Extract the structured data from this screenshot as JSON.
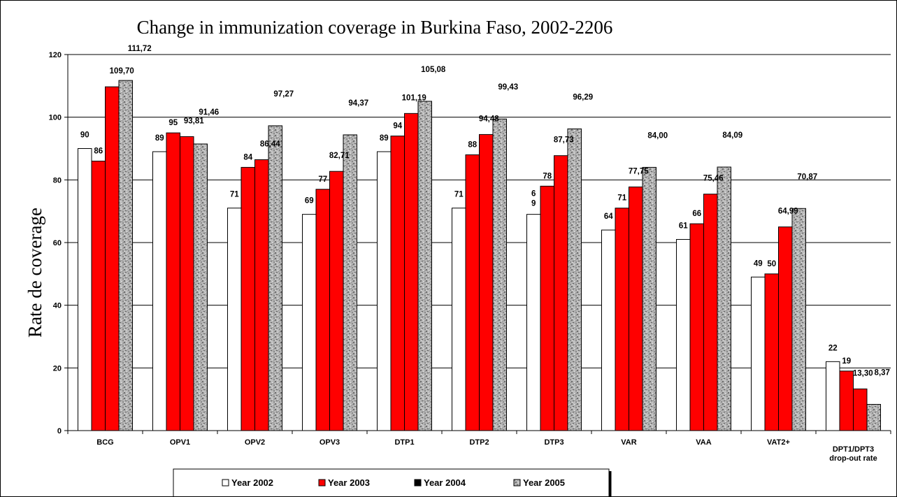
{
  "chart_data": {
    "type": "bar",
    "title": "Change in immunization coverage in Burkina Faso, 2002-2206",
    "ylabel": "Rate de coverage",
    "xlabel": "",
    "ylim": [
      0,
      120
    ],
    "yticks": [
      0,
      20,
      40,
      60,
      80,
      100,
      120
    ],
    "grid": true,
    "legend_position": "bottom",
    "categories": [
      "BCG",
      "OPV1",
      "OPV2",
      "OPV3",
      "DTP1",
      "DTP2",
      "DTP3",
      "VAR",
      "VAA",
      "VAT2+",
      "DPT1/DPT3 drop-out rate"
    ],
    "category_labels": [
      [
        "BCG"
      ],
      [
        "OPV1"
      ],
      [
        "OPV2"
      ],
      [
        "OPV3"
      ],
      [
        "DTP1"
      ],
      [
        "DTP2"
      ],
      [
        "DTP3"
      ],
      [
        "VAR"
      ],
      [
        "VAA"
      ],
      [
        "VAT2+"
      ],
      [
        "DPT1/DPT3",
        "drop-out rate"
      ]
    ],
    "series": [
      {
        "name": "Year 2002",
        "color": "#ffffff",
        "pattern": "none",
        "values": [
          90,
          89,
          71,
          69,
          89,
          71,
          69,
          64,
          61,
          49,
          22
        ],
        "labels": [
          "90",
          "89",
          "71",
          "69",
          "89",
          "71",
          "6\n9",
          "64",
          "61",
          "49",
          "22"
        ]
      },
      {
        "name": "Year 2003",
        "color": "#ff0000",
        "pattern": "none",
        "values": [
          86,
          95,
          84,
          77,
          94,
          88,
          78,
          71,
          66,
          50,
          19
        ],
        "labels": [
          "86",
          "95",
          "84",
          "77",
          "94",
          "88",
          "78",
          "71",
          "66",
          "50",
          "19"
        ]
      },
      {
        "name": "Year 2004",
        "color": "#ff0000",
        "legend_color": "#000000",
        "pattern": "none",
        "values": [
          109.7,
          93.81,
          86.44,
          82.71,
          101.19,
          94.48,
          87.73,
          77.75,
          75.46,
          64.99,
          13.3
        ],
        "labels": [
          "109,70",
          "93,81",
          "86,44",
          "82,71",
          "101,19",
          "94,48",
          "87,73",
          "77,75",
          "75,46",
          "64,99",
          "13,30"
        ]
      },
      {
        "name": "Year 2005",
        "color": "#a9a9a9",
        "pattern": "granite",
        "values": [
          111.72,
          91.46,
          97.27,
          94.37,
          105.08,
          99.43,
          96.29,
          84.0,
          84.09,
          70.87,
          8.37
        ],
        "labels": [
          "111,72",
          "91,46",
          "97,27",
          "94,37",
          "105,08",
          "99,43",
          "96,29",
          "84,00",
          "84,09",
          "70,87",
          "8,37"
        ]
      }
    ]
  }
}
